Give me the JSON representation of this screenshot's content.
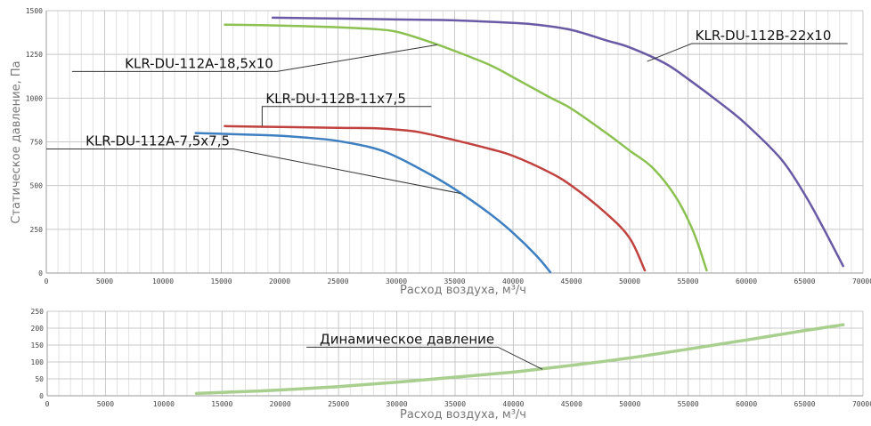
{
  "chart_data": [
    {
      "type": "line",
      "title": "",
      "xlabel": "Расход воздуха, м³/ч",
      "ylabel": "Статическое давление, Па",
      "xlim": [
        0,
        70000
      ],
      "ylim": [
        0,
        1500
      ],
      "xticks": [
        0,
        5000,
        10000,
        15000,
        20000,
        25000,
        30000,
        35000,
        40000,
        45000,
        50000,
        55000,
        60000,
        65000,
        70000
      ],
      "yticks": [
        0,
        250,
        500,
        750,
        1000,
        1250,
        1500
      ],
      "grid": true,
      "series": [
        {
          "name": "KLR-DU-112A-7,5x7,5",
          "color": "#3d7fc1",
          "x": [
            12800,
            17000,
            20000,
            23000,
            25000,
            28000,
            30000,
            33000,
            35000,
            38000,
            40000,
            42000,
            43200
          ],
          "y": [
            800,
            792,
            785,
            770,
            755,
            715,
            665,
            560,
            480,
            340,
            230,
            100,
            5
          ],
          "label_anchor": [
            35500,
            455
          ]
        },
        {
          "name": "KLR-DU-112B-11x7,5",
          "color": "#c0413e",
          "x": [
            15300,
            20000,
            25000,
            28000,
            30000,
            32000,
            35000,
            38000,
            40000,
            43000,
            45000,
            48000,
            50000,
            51300
          ],
          "y": [
            840,
            835,
            830,
            828,
            820,
            805,
            760,
            710,
            670,
            580,
            500,
            340,
            200,
            15
          ],
          "label_anchor": [
            18500,
            840
          ]
        },
        {
          "name": "KLR-DU-112A-18,5x10",
          "color": "#8cc152",
          "x": [
            15300,
            20000,
            25000,
            28000,
            30000,
            32500,
            35000,
            38000,
            40000,
            43000,
            45000,
            48000,
            50000,
            52000,
            54000,
            55500,
            56600
          ],
          "y": [
            1420,
            1415,
            1405,
            1395,
            1380,
            1330,
            1270,
            1190,
            1120,
            1010,
            940,
            800,
            700,
            600,
            430,
            230,
            15
          ],
          "label_anchor": [
            33500,
            1305
          ]
        },
        {
          "name": "KLR-DU-112B-22x10",
          "color": "#6a5aa5",
          "x": [
            19400,
            25000,
            30000,
            35000,
            40000,
            42000,
            45000,
            48000,
            50000,
            53000,
            55000,
            58000,
            60000,
            63000,
            65000,
            66500,
            68300
          ],
          "y": [
            1460,
            1455,
            1450,
            1445,
            1430,
            1420,
            1390,
            1330,
            1290,
            1200,
            1110,
            960,
            850,
            650,
            450,
            270,
            40
          ],
          "label_anchor": [
            51500,
            1210
          ]
        }
      ]
    },
    {
      "type": "line",
      "title": "",
      "xlabel": "Расход воздуха, м³/ч",
      "ylabel": "",
      "xlim": [
        0,
        70000
      ],
      "ylim": [
        0,
        250
      ],
      "xticks": [
        0,
        5000,
        10000,
        15000,
        20000,
        25000,
        30000,
        35000,
        40000,
        45000,
        50000,
        55000,
        60000,
        65000,
        70000
      ],
      "yticks": [
        0,
        50,
        100,
        150,
        200,
        250
      ],
      "grid": true,
      "series": [
        {
          "name": "Динамическое давление",
          "color": "#a8cf8e",
          "x": [
            12800,
            15000,
            20000,
            25000,
            30000,
            35000,
            40000,
            42500,
            45000,
            50000,
            55000,
            60000,
            65000,
            68300
          ],
          "y": [
            7,
            10,
            17,
            27,
            40,
            55,
            70,
            80,
            90,
            112,
            138,
            165,
            193,
            210
          ],
          "label_anchor": [
            42500,
            78
          ]
        }
      ]
    }
  ]
}
